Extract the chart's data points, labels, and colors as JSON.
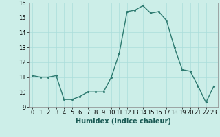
{
  "x": [
    0,
    1,
    2,
    3,
    4,
    5,
    6,
    7,
    8,
    9,
    10,
    11,
    12,
    13,
    14,
    15,
    16,
    17,
    18,
    19,
    20,
    21,
    22,
    23
  ],
  "y": [
    11.1,
    11.0,
    11.0,
    11.1,
    9.5,
    9.5,
    9.7,
    10.0,
    10.0,
    10.0,
    11.0,
    12.6,
    15.4,
    15.5,
    15.8,
    15.3,
    15.4,
    14.8,
    13.0,
    11.5,
    11.4,
    10.4,
    9.3,
    10.4
  ],
  "line_color": "#2d7a70",
  "marker_color": "#2d7a70",
  "bg_color": "#cceee8",
  "grid_color": "#aaddda",
  "xlabel": "Humidex (Indice chaleur)",
  "xlabel_fontsize": 7,
  "tick_fontsize": 6,
  "ylim": [
    9,
    16
  ],
  "yticks": [
    9,
    10,
    11,
    12,
    13,
    14,
    15,
    16
  ],
  "xlim": [
    -0.5,
    23.5
  ],
  "xticks": [
    0,
    1,
    2,
    3,
    4,
    5,
    6,
    7,
    8,
    9,
    10,
    11,
    12,
    13,
    14,
    15,
    16,
    17,
    18,
    19,
    20,
    21,
    22,
    23
  ],
  "xtick_labels": [
    "0",
    "1",
    "2",
    "3",
    "4",
    "5",
    "6",
    "7",
    "8",
    "9",
    "10",
    "11",
    "12",
    "13",
    "14",
    "15",
    "16",
    "17",
    "18",
    "19",
    "20",
    "21",
    "22",
    "23"
  ],
  "line_width": 1.0,
  "marker_size": 2.5
}
